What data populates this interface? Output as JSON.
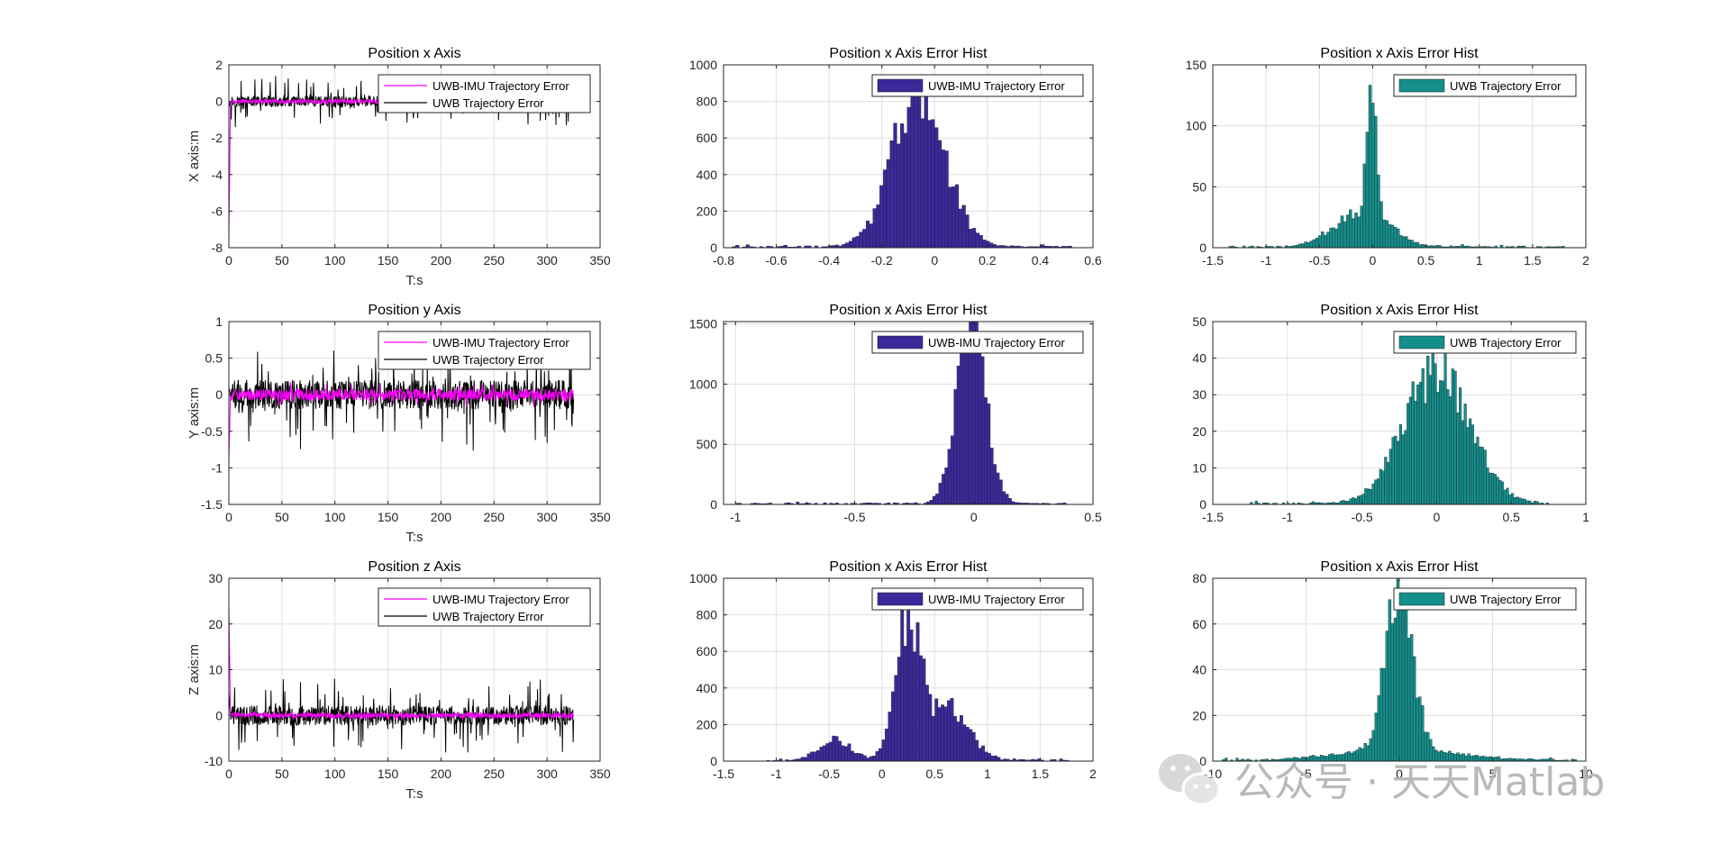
{
  "figure": {
    "watermark": "公众号 · 天天Matlab",
    "colors": {
      "fused": "#ff00ff",
      "uwb": "#000000",
      "hist_fused": "#3a2a9c",
      "hist_uwb": "#148f8c",
      "grid": "#dfdfdf"
    }
  },
  "chart_data": [
    {
      "id": "ts_x",
      "type": "line",
      "title": "Position x Axis",
      "xlabel": "T:s",
      "ylabel": "X axis:m",
      "xlim": [
        0,
        350
      ],
      "ylim": [
        -8,
        2
      ],
      "xticks": [
        0,
        50,
        100,
        150,
        200,
        250,
        300,
        350
      ],
      "yticks": [
        -8,
        -6,
        -4,
        -2,
        0,
        2
      ],
      "legend": [
        "UWB-IMU Trajectory Error",
        "UWB Trajectory Error"
      ],
      "legend_loc": "top-right",
      "series": [
        {
          "name": "UWB-IMU Trajectory Error",
          "color": "#ff00ff",
          "t_end": 325,
          "noise": 0.12,
          "spikes": 0.08,
          "start": -7.5
        },
        {
          "name": "UWB Trajectory Error",
          "color": "#000000",
          "t_end": 325,
          "noise": 0.3,
          "spikes": 1.2,
          "start": -0.3
        }
      ]
    },
    {
      "id": "ts_y",
      "type": "line",
      "title": "Position y Axis",
      "xlabel": "T:s",
      "ylabel": "Y axis:m",
      "xlim": [
        0,
        350
      ],
      "ylim": [
        -1.5,
        1
      ],
      "xticks": [
        0,
        50,
        100,
        150,
        200,
        250,
        300,
        350
      ],
      "yticks": [
        -1.5,
        -1,
        -0.5,
        0,
        0.5,
        1
      ],
      "legend": [
        "UWB-IMU Trajectory Error",
        "UWB Trajectory Error"
      ],
      "legend_loc": "top-right",
      "series": [
        {
          "name": "UWB-IMU Trajectory Error",
          "color": "#ff00ff",
          "t_end": 325,
          "noise": 0.08,
          "spikes": 0.1,
          "start": -0.9
        },
        {
          "name": "UWB Trajectory Error",
          "color": "#000000",
          "t_end": 325,
          "noise": 0.2,
          "spikes": 0.6,
          "start": 0.1
        }
      ]
    },
    {
      "id": "ts_z",
      "type": "line",
      "title": "Position z Axis",
      "xlabel": "T:s",
      "ylabel": "Z axis:m",
      "xlim": [
        0,
        350
      ],
      "ylim": [
        -10,
        30
      ],
      "xticks": [
        0,
        50,
        100,
        150,
        200,
        250,
        300,
        350
      ],
      "yticks": [
        -10,
        0,
        10,
        20,
        30
      ],
      "legend": [
        "UWB-IMU Trajectory Error",
        "UWB Trajectory Error"
      ],
      "legend_loc": "top-right",
      "series": [
        {
          "name": "UWB-IMU Trajectory Error",
          "color": "#ff00ff",
          "t_end": 325,
          "noise": 0.6,
          "spikes": 0.8,
          "start": 24
        },
        {
          "name": "UWB Trajectory Error",
          "color": "#000000",
          "t_end": 325,
          "noise": 2.2,
          "spikes": 7,
          "start": 5
        }
      ]
    },
    {
      "id": "h_fx",
      "type": "bar",
      "title": "Position x Axis Error Hist",
      "legend": [
        "UWB-IMU Trajectory Error"
      ],
      "legend_loc": "top-right",
      "xlim": [
        -0.8,
        0.6
      ],
      "ylim": [
        0,
        1000
      ],
      "xticks": [
        -0.8,
        -0.6,
        -0.4,
        -0.2,
        0,
        0.2,
        0.4,
        0.6
      ],
      "yticks": [
        0,
        200,
        400,
        600,
        800,
        1000
      ],
      "color": "#3a2a9c",
      "bins": 100,
      "bin_range": [
        -0.78,
        0.52
      ],
      "shape": [
        {
          "mu": -0.06,
          "sigma": 0.1,
          "amp": 830
        }
      ]
    },
    {
      "id": "h_fy",
      "type": "bar",
      "title": "Position x Axis Error Hist",
      "legend": [
        "UWB-IMU Trajectory Error"
      ],
      "legend_loc": "top-right",
      "xlim": [
        -1.05,
        0.5
      ],
      "ylim": [
        0,
        1520
      ],
      "xticks": [
        -1,
        -0.5,
        0,
        0.5
      ],
      "yticks": [
        0,
        500,
        1000,
        1500
      ],
      "color": "#3a2a9c",
      "bins": 110,
      "bin_range": [
        -1.0,
        0.4
      ],
      "shape": [
        {
          "mu": -0.01,
          "sigma": 0.06,
          "amp": 1520
        }
      ]
    },
    {
      "id": "h_fz",
      "type": "bar",
      "title": "Position x Axis Error Hist",
      "legend": [
        "UWB-IMU Trajectory Error"
      ],
      "legend_loc": "top-right",
      "xlim": [
        -1.5,
        2
      ],
      "ylim": [
        0,
        1000
      ],
      "xticks": [
        -1.5,
        -1,
        -0.5,
        0,
        0.5,
        1,
        1.5,
        2
      ],
      "yticks": [
        0,
        200,
        400,
        600,
        800,
        1000
      ],
      "color": "#3a2a9c",
      "bins": 100,
      "bin_range": [
        -1.15,
        1.8
      ],
      "shape": [
        {
          "mu": 0.25,
          "sigma": 0.12,
          "amp": 800
        },
        {
          "mu": 0.65,
          "sigma": 0.18,
          "amp": 280
        },
        {
          "mu": -0.45,
          "sigma": 0.15,
          "amp": 110
        }
      ]
    },
    {
      "id": "h_ux",
      "type": "bar",
      "title": "Position x Axis Error Hist",
      "legend": [
        "UWB Trajectory Error"
      ],
      "legend_loc": "top-right",
      "xlim": [
        -1.5,
        2
      ],
      "ylim": [
        0,
        150
      ],
      "xticks": [
        -1.5,
        -1,
        -0.5,
        0,
        0.5,
        1,
        1.5,
        2
      ],
      "yticks": [
        0,
        50,
        100,
        150
      ],
      "color": "#148f8c",
      "bins": 120,
      "bin_range": [
        -1.35,
        1.8
      ],
      "shape": [
        {
          "mu": -0.01,
          "sigma": 0.04,
          "amp": 125
        },
        {
          "mu": -0.1,
          "sigma": 0.25,
          "amp": 30
        }
      ]
    },
    {
      "id": "h_uy",
      "type": "bar",
      "title": "Position x Axis Error Hist",
      "legend": [
        "UWB Trajectory Error"
      ],
      "legend_loc": "top-right",
      "xlim": [
        -1.5,
        1
      ],
      "ylim": [
        0,
        50
      ],
      "xticks": [
        -1.5,
        -1,
        -0.5,
        0,
        0.5,
        1
      ],
      "yticks": [
        0,
        10,
        20,
        30,
        40,
        50
      ],
      "color": "#148f8c",
      "bins": 120,
      "bin_range": [
        -1.25,
        0.75
      ],
      "shape": [
        {
          "mu": 0.0,
          "sigma": 0.22,
          "amp": 36
        }
      ]
    },
    {
      "id": "h_uz",
      "type": "bar",
      "title": "Position x Axis Error Hist",
      "legend": [
        "UWB Trajectory Error"
      ],
      "legend_loc": "top-right",
      "xlim": [
        -10,
        10
      ],
      "ylim": [
        0,
        80
      ],
      "xticks": [
        -10,
        -5,
        0,
        5,
        10
      ],
      "yticks": [
        0,
        20,
        40,
        60,
        80
      ],
      "color": "#148f8c",
      "bins": 130,
      "bin_range": [
        -9.5,
        9.5
      ],
      "shape": [
        {
          "mu": 0.0,
          "sigma": 0.7,
          "amp": 72
        },
        {
          "mu": 0.0,
          "sigma": 3.0,
          "amp": 5
        }
      ]
    }
  ]
}
